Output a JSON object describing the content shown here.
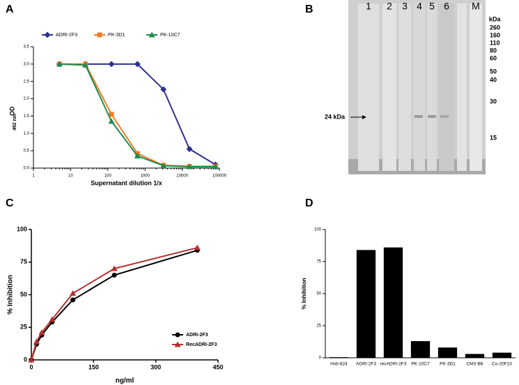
{
  "panels": [
    "A",
    "B",
    "C",
    "D"
  ],
  "blot": {
    "lanes": [
      "1",
      "2",
      "3",
      "4",
      "5",
      "6",
      "M"
    ],
    "unit": "kDa",
    "markers": [
      "260",
      "160",
      "110",
      "80",
      "60",
      "50",
      "40",
      "30",
      "15"
    ],
    "arrow_label": "24 kDa"
  },
  "chart_data": [
    {
      "type": "line",
      "xscale": "log",
      "xlabel": "Supernatant dilution 1/x",
      "ylabel": "OD",
      "ylabel_sub": "492 nm",
      "legend": "top",
      "x": [
        5,
        25,
        125,
        625,
        3125,
        15625,
        78125
      ],
      "series": [
        {
          "name": "ADRI-2F3",
          "color": "#2e3192",
          "marker": "diamond",
          "values": [
            3.0,
            3.0,
            3.0,
            3.0,
            2.27,
            0.55,
            0.1
          ]
        },
        {
          "name": "PK-3D1",
          "color": "#f47b20",
          "marker": "square",
          "values": [
            3.0,
            3.0,
            1.55,
            0.42,
            0.08,
            0.05,
            0.05
          ]
        },
        {
          "name": "PK-10C7",
          "color": "#1f8a4c",
          "marker": "triangle",
          "values": [
            3.0,
            2.97,
            1.35,
            0.35,
            0.07,
            0.04,
            0.04
          ]
        }
      ],
      "xlim": [
        1,
        100000
      ],
      "xticks": [
        1,
        10,
        100,
        1000,
        10000,
        100000
      ],
      "ylim": [
        0,
        3.5
      ],
      "yticks": [
        {
          "value": 0,
          "label": "0.0"
        },
        0.5,
        {
          "value": 1,
          "label": "1.0"
        },
        1.5,
        {
          "value": 2,
          "label": "2.0"
        },
        2.5,
        {
          "value": 3,
          "label": "3.0"
        },
        3.5
      ]
    },
    {
      "type": "line",
      "xlabel": "ng/ml",
      "ylabel": "% Inhibition",
      "legend": "right",
      "x": [
        0,
        12.5,
        25,
        50,
        100,
        200,
        400
      ],
      "series": [
        {
          "name": "ADRI-2F3",
          "color": "#000000",
          "marker": "circle",
          "values": [
            0,
            12,
            19,
            29,
            46,
            65,
            84
          ]
        },
        {
          "name": "RecADRI-2F3",
          "color": "#b5302f",
          "marker": "triangle",
          "values": [
            0,
            14,
            21,
            31,
            51,
            70,
            86
          ]
        }
      ],
      "xlim": [
        0,
        450
      ],
      "xticks": [
        0,
        150,
        300,
        450
      ],
      "ylim": [
        0,
        100
      ],
      "yticks": [
        0,
        25,
        50,
        75,
        100
      ]
    },
    {
      "type": "bar",
      "ylabel": "% Inhibition",
      "color": "#000000",
      "categories": [
        "Hvb-824",
        "ADRI-2F3",
        "recADRI-2F3",
        "PK-10C7",
        "PK-3D1",
        "CM3-B6",
        "Co-20F10"
      ],
      "values": [
        0.5,
        84,
        86,
        13,
        8,
        3,
        4
      ],
      "ylim": [
        0,
        100
      ],
      "yticks": [
        0,
        25,
        50,
        75,
        100
      ]
    }
  ]
}
